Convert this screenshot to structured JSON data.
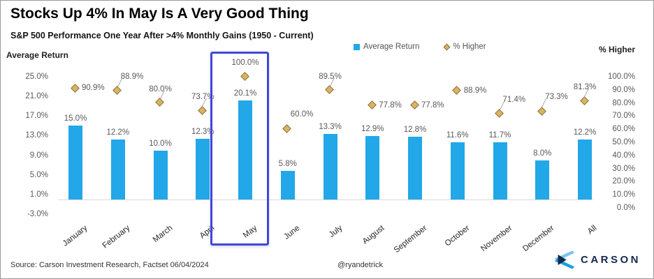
{
  "header": {
    "title": "Stocks Up 4% In May Is A Very Good Thing",
    "subtitle": "S&P 500 Performance One Year After >4% Monthly Gains (1950 - Current)"
  },
  "legend": {
    "items": [
      {
        "label": "Average Return",
        "marker": "square",
        "color": "#22A7E9"
      },
      {
        "label": "% Higher",
        "marker": "diamond",
        "color": "#D9B365"
      }
    ]
  },
  "axes": {
    "left": {
      "title": "Average Return",
      "ticks": [
        "25.0%",
        "21.0%",
        "17.0%",
        "13.0%",
        "9.0%",
        "5.0%",
        "1.0%",
        "-3.0%"
      ]
    },
    "right": {
      "title": "% Higher",
      "ticks": [
        "100.0%",
        "90.0%",
        "80.0%",
        "70.0%",
        "60.0%",
        "50.0%",
        "40.0%",
        "30.0%",
        "20.0%",
        "10.0%",
        "0.0%"
      ]
    }
  },
  "chart_data": {
    "type": "bar",
    "title": "Stocks Up 4% In May Is A Very Good Thing",
    "subtitle": "S&P 500 Performance One Year After >4% Monthly Gains (1950 - Current)",
    "categories": [
      "January",
      "February",
      "March",
      "April",
      "May",
      "June",
      "July",
      "August",
      "September",
      "October",
      "November",
      "December",
      "All"
    ],
    "series": [
      {
        "name": "Average Return",
        "type": "bar",
        "color": "#22A7E9",
        "values": [
          15.0,
          12.2,
          10.0,
          12.3,
          20.1,
          5.8,
          13.3,
          12.9,
          12.8,
          11.6,
          11.7,
          8.0,
          12.2
        ],
        "labels": [
          "15.0%",
          "12.2%",
          "10.0%",
          "12.3%",
          "20.1%",
          "5.8%",
          "13.3%",
          "12.9%",
          "12.8%",
          "11.6%",
          "11.7%",
          "8.0%",
          "12.2%"
        ]
      },
      {
        "name": "% Higher",
        "type": "scatter",
        "marker": "diamond",
        "fill": "#D9B365",
        "border": "#8A7239",
        "values": [
          90.9,
          88.9,
          80.0,
          73.7,
          100.0,
          60.0,
          89.5,
          77.8,
          77.8,
          88.9,
          71.4,
          73.3,
          81.3
        ],
        "labels": [
          "90.9%",
          "88.9%",
          "80.0%",
          "73.7%",
          "100.0%",
          "60.0%",
          "89.5%",
          "77.8%",
          "77.8%",
          "88.9%",
          "71.4%",
          "73.3%",
          "81.3%"
        ],
        "label_placement": [
          "right",
          "above-right",
          "above",
          "above",
          "above",
          "above-right",
          "above",
          "right",
          "right",
          "right",
          "above-right",
          "above-right",
          "above"
        ],
        "leader": [
          false,
          true,
          true,
          true,
          false,
          false,
          true,
          false,
          false,
          false,
          true,
          true,
          true
        ]
      }
    ],
    "left_axis": {
      "label": "Average Return",
      "min": -3,
      "max": 25,
      "tick_step": 4
    },
    "right_axis": {
      "label": "% Higher",
      "min": 0,
      "max": 100,
      "tick_step": 10
    },
    "grid": "zero-baseline-only",
    "legend_position": "top",
    "highlight": {
      "category": "May",
      "border_color": "#4146D8"
    }
  },
  "footer": {
    "source": "Source: Carson Investment Research, Factset 06/04/2024",
    "handle": "@ryandetrick"
  },
  "logo": {
    "text": "CARSON",
    "navy": "#16294E",
    "light_blue": "#7CC5EF",
    "mid_blue": "#1D9EE0"
  }
}
